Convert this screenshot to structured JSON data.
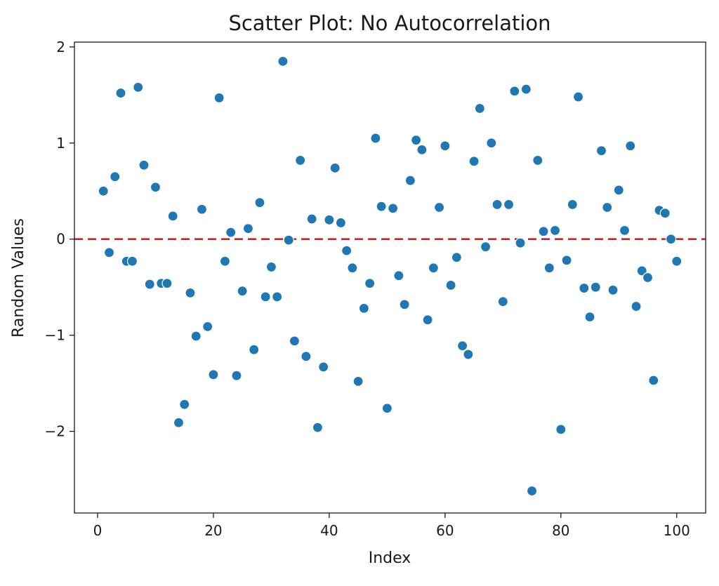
{
  "chart_data": {
    "type": "scatter",
    "title": "Scatter Plot: No Autocorrelation",
    "xlabel": "Index",
    "ylabel": "Random Values",
    "xlim": [
      -4,
      105
    ],
    "ylim": [
      -2.85,
      2.05
    ],
    "xticks": [
      0,
      20,
      40,
      60,
      80,
      100
    ],
    "yticks": [
      2,
      1,
      0,
      -1,
      -2
    ],
    "xtick_labels": [
      "0",
      "20",
      "40",
      "60",
      "80",
      "100"
    ],
    "ytick_labels": [
      "2",
      "1",
      "0",
      "−1",
      "−2"
    ],
    "grid": false,
    "reference_line": {
      "y": 0,
      "color": "#e31a1c",
      "style": "dashed"
    },
    "point_color": "#1f77b4",
    "series": [
      {
        "x": [
          1,
          2,
          3,
          4,
          5,
          6,
          7,
          8,
          9,
          10,
          11,
          12,
          13,
          14,
          15,
          16,
          17,
          18,
          19,
          20,
          21,
          22,
          23,
          24,
          25,
          26,
          27,
          28,
          29,
          30,
          31,
          32,
          33,
          34,
          35,
          36,
          37,
          38,
          39,
          40,
          41,
          42,
          43,
          44,
          45,
          46,
          47,
          48,
          49,
          50,
          51,
          52,
          53,
          54,
          55,
          56,
          57,
          58,
          59,
          60,
          61,
          62,
          63,
          64,
          65,
          66,
          67,
          68,
          69,
          70,
          71,
          72,
          73,
          74,
          75,
          76,
          77,
          78,
          79,
          80,
          81,
          82,
          83,
          84,
          85,
          86,
          87,
          88,
          89,
          90,
          91,
          92,
          93,
          94,
          95,
          96,
          97,
          98,
          99,
          100
        ],
        "y": [
          0.5,
          -0.14,
          0.65,
          1.52,
          -0.23,
          -0.23,
          1.58,
          0.77,
          -0.47,
          0.54,
          -0.46,
          -0.46,
          0.24,
          -1.91,
          -1.72,
          -0.56,
          -1.01,
          0.31,
          -0.91,
          -1.41,
          1.47,
          -0.23,
          0.07,
          -1.42,
          -0.54,
          0.11,
          -1.15,
          0.38,
          -0.6,
          -0.29,
          -0.6,
          1.85,
          -0.01,
          -1.06,
          0.82,
          -1.22,
          0.21,
          -1.96,
          -1.33,
          0.2,
          0.74,
          0.17,
          -0.12,
          -0.3,
          -1.48,
          -0.72,
          -0.46,
          1.05,
          0.34,
          -1.76,
          0.32,
          -0.38,
          -0.68,
          0.61,
          1.03,
          0.93,
          -0.84,
          -0.3,
          0.33,
          0.97,
          -0.48,
          -0.19,
          -1.11,
          -1.2,
          0.81,
          1.36,
          -0.08,
          1.0,
          0.36,
          -0.65,
          0.36,
          1.54,
          -0.04,
          1.56,
          -2.62,
          0.82,
          0.08,
          -0.3,
          0.09,
          -1.98,
          -0.22,
          0.36,
          1.48,
          -0.51,
          -0.81,
          -0.5,
          0.92,
          0.33,
          -0.53,
          0.51,
          0.09,
          0.97,
          -0.7,
          -0.33,
          -0.4,
          -1.47,
          0.3,
          0.27,
          0.0,
          -0.23
        ]
      }
    ]
  }
}
